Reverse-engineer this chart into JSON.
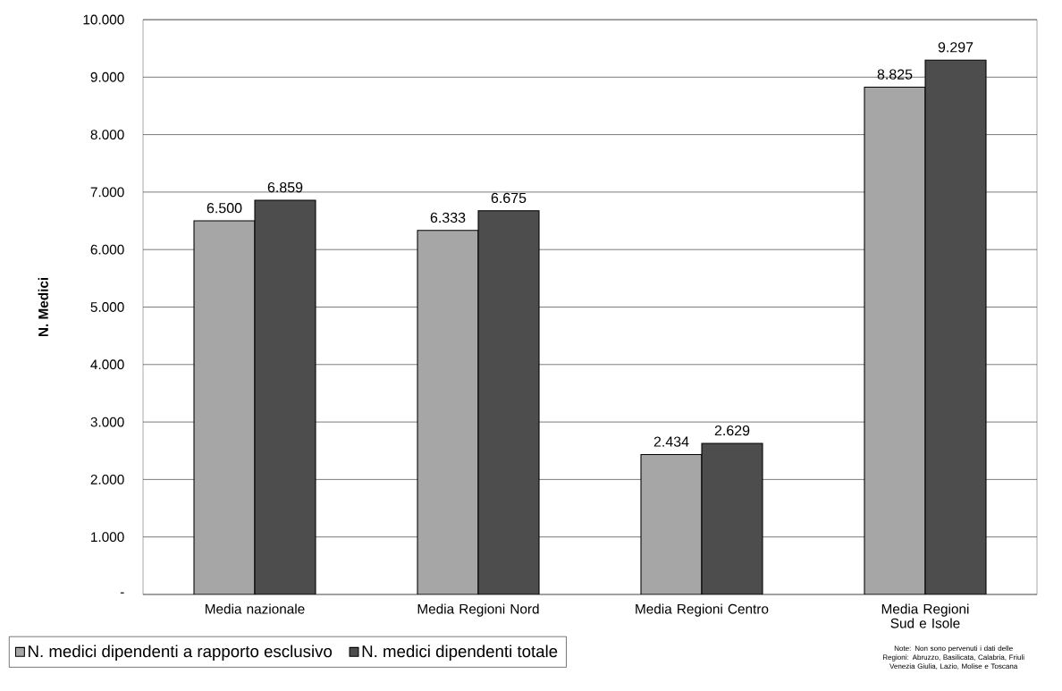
{
  "chart_data": {
    "type": "bar",
    "ylabel": "N. Medici",
    "categories": [
      "Media nazionale",
      "Media Regioni Nord",
      "Media Regioni Centro",
      "Media Regioni Sud e Isole"
    ],
    "series": [
      {
        "name": "N. medici dipendenti a rapporto esclusivo",
        "color": "#a6a6a6",
        "values": [
          6500,
          6333,
          2434,
          8825
        ],
        "value_labels": [
          "6.500",
          "6.333",
          "2.434",
          "8.825"
        ]
      },
      {
        "name": "N. medici dipendenti totale",
        "color": "#4d4d4d",
        "values": [
          6859,
          6675,
          2629,
          9297
        ],
        "value_labels": [
          "6.859",
          "6.675",
          "2.629",
          "9.297"
        ]
      }
    ],
    "ylim": [
      0,
      10000
    ],
    "yticks": [
      {
        "value": 0,
        "label": "-"
      },
      {
        "value": 1000,
        "label": "1.000"
      },
      {
        "value": 2000,
        "label": "2.000"
      },
      {
        "value": 3000,
        "label": "3.000"
      },
      {
        "value": 4000,
        "label": "4.000"
      },
      {
        "value": 5000,
        "label": "5.000"
      },
      {
        "value": 6000,
        "label": "6.000"
      },
      {
        "value": 7000,
        "label": "7.000"
      },
      {
        "value": 8000,
        "label": "8.000"
      },
      {
        "value": 9000,
        "label": "9.000"
      },
      {
        "value": 10000,
        "label": "10.000"
      }
    ],
    "grid": "y",
    "legend": "bottom left",
    "annotations": [
      "Note: Non sono pervenuti i dati delle Regioni: Abruzzo, Basilicata, Calabria, Friuli Venezia Giulia, Lazio, Molise e Toscana"
    ]
  }
}
